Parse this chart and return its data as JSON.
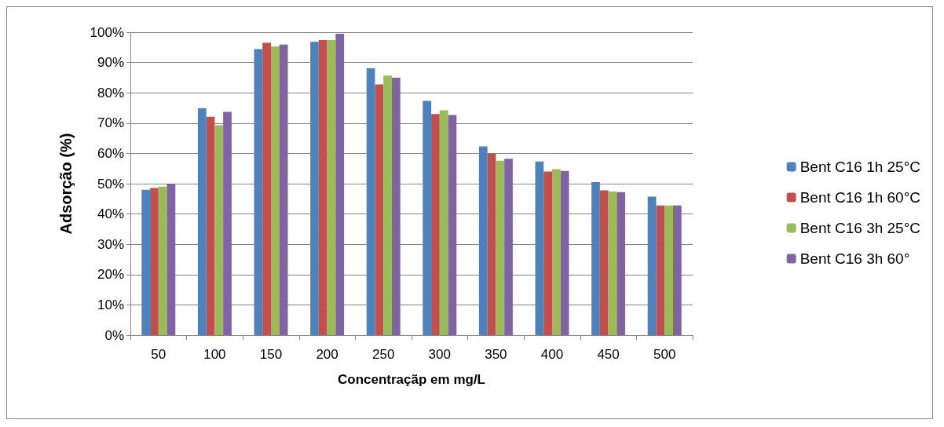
{
  "chart_data": {
    "type": "bar",
    "xlabel": "Concentraçãp em mg/L",
    "ylabel": "Adsorção (%)",
    "categories": [
      "50",
      "100",
      "150",
      "200",
      "250",
      "300",
      "350",
      "400",
      "450",
      "500"
    ],
    "series": [
      {
        "name": "Bent C16 1h 25°C",
        "color": "#4f81bd",
        "values": [
          48.0,
          74.9,
          94.4,
          96.8,
          88.1,
          77.3,
          62.3,
          57.3,
          50.5,
          45.7
        ]
      },
      {
        "name": "Bent C16 1h 60°C",
        "color": "#c0504d",
        "values": [
          48.6,
          72.1,
          96.5,
          97.4,
          82.8,
          73.0,
          60.0,
          54.0,
          47.8,
          42.8
        ]
      },
      {
        "name": "Bent C16 3h 25°C",
        "color": "#9bbb59",
        "values": [
          49.0,
          69.3,
          95.3,
          97.4,
          85.7,
          74.2,
          57.6,
          54.8,
          47.4,
          42.8
        ]
      },
      {
        "name": "Bent C16 3h 60°",
        "color": "#8064a2",
        "values": [
          50.0,
          73.7,
          95.9,
          99.5,
          85.0,
          72.7,
          58.2,
          54.2,
          47.2,
          42.8
        ]
      }
    ],
    "ylim": [
      0,
      100
    ],
    "yticks": [
      {
        "value": 0,
        "label": "0%"
      },
      {
        "value": 10,
        "label": "10%"
      },
      {
        "value": 20,
        "label": "20%"
      },
      {
        "value": 30,
        "label": "30%"
      },
      {
        "value": 40,
        "label": "40%"
      },
      {
        "value": 50,
        "label": "50%"
      },
      {
        "value": 60,
        "label": "60%"
      },
      {
        "value": 70,
        "label": "70%"
      },
      {
        "value": 80,
        "label": "80%"
      },
      {
        "value": 90,
        "label": "90%"
      },
      {
        "value": 100,
        "label": "100%"
      }
    ],
    "grid": "y",
    "legend": "right"
  }
}
